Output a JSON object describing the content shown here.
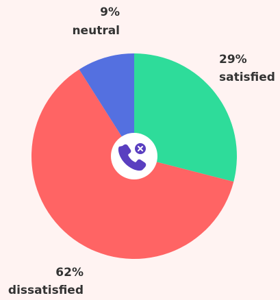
{
  "chart_data": {
    "type": "pie",
    "categories": [
      "satisfied",
      "dissatisfied",
      "neutral"
    ],
    "values": [
      29,
      62,
      9
    ],
    "value_labels": [
      "29%",
      "62%",
      "9%"
    ],
    "colors": [
      "#2edc9a",
      "#ff6464",
      "#5470e0"
    ]
  }
}
